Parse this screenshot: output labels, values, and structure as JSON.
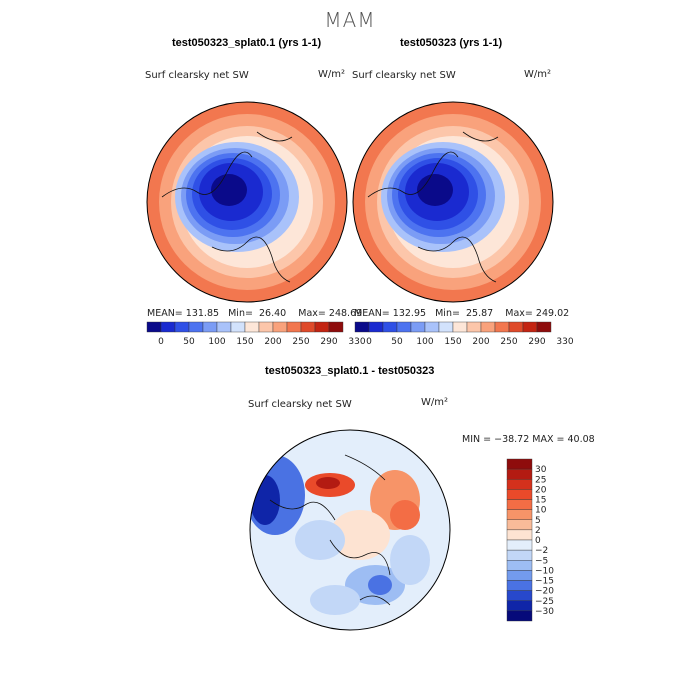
{
  "season": "MAM",
  "panels": [
    {
      "title": "test050323_splat0.1 (yrs 1-1)",
      "variable": "Surf clearsky net SW",
      "units": "W/m²",
      "stats": {
        "mean_label": "MEAN=",
        "mean": "131.85",
        "min_label": "Min=",
        "min": "26.40",
        "max_label": "Max=",
        "max": "248.69"
      }
    },
    {
      "title": "test050323 (yrs 1-1)",
      "variable": "Surf clearsky net SW",
      "units": "W/m²",
      "stats": {
        "mean_label": "MEAN=",
        "mean": "132.95",
        "min_label": "Min=",
        "min": "25.87",
        "max_label": "Max=",
        "max": "249.02"
      }
    }
  ],
  "diff_panel": {
    "title": "test050323_splat0.1 - test050323",
    "variable": "Surf clearsky net SW",
    "units": "W/m²",
    "minmax": "MIN = −38.72 MAX =  40.08"
  },
  "chart_data": [
    {
      "type": "heatmap",
      "projection": "north-polar-stereographic",
      "title": "test050323_splat0.1 (yrs 1-1)",
      "variable": "Surf clearsky net SW",
      "units": "W/m2",
      "mean": 131.85,
      "min": 26.4,
      "max": 248.69,
      "colorbar_ticks": [
        "0",
        "50",
        "100",
        "150",
        "200",
        "250",
        "290",
        "330"
      ],
      "colors": [
        "#0a0a8a",
        "#1a2ad0",
        "#2f50e6",
        "#4d73f0",
        "#7b9cf5",
        "#a9c2fa",
        "#d2e2fc",
        "#fde6d8",
        "#fcc6aa",
        "#f9a27c",
        "#f2774f",
        "#df4a2a",
        "#c32412",
        "#8e0c0c"
      ]
    },
    {
      "type": "heatmap",
      "projection": "north-polar-stereographic",
      "title": "test050323 (yrs 1-1)",
      "variable": "Surf clearsky net SW",
      "units": "W/m2",
      "mean": 132.95,
      "min": 25.87,
      "max": 249.02,
      "colorbar_ticks": [
        "0",
        "50",
        "100",
        "150",
        "200",
        "250",
        "290",
        "330"
      ],
      "colors": [
        "#0a0a8a",
        "#1a2ad0",
        "#2f50e6",
        "#4d73f0",
        "#7b9cf5",
        "#a9c2fa",
        "#d2e2fc",
        "#fde6d8",
        "#fcc6aa",
        "#f9a27c",
        "#f2774f",
        "#df4a2a",
        "#c32412",
        "#8e0c0c"
      ]
    },
    {
      "type": "heatmap",
      "projection": "north-polar-stereographic",
      "title": "test050323_splat0.1 - test050323",
      "variable": "Surf clearsky net SW",
      "units": "W/m2",
      "min": -38.72,
      "max": 40.08,
      "colorbar_ticks": [
        "30",
        "25",
        "20",
        "15",
        "10",
        "5",
        "2",
        "0",
        "−2",
        "−5",
        "−10",
        "−15",
        "−20",
        "−25",
        "−30"
      ],
      "colors": [
        "#8e0c0c",
        "#b31b12",
        "#d4311c",
        "#ea4a2a",
        "#f36d45",
        "#f79468",
        "#f9bb99",
        "#fde3d2",
        "#e3eefb",
        "#c2d7f7",
        "#9dbdf3",
        "#739bed",
        "#4a72e3",
        "#2748cc",
        "#0f25a8",
        "#060a7a"
      ]
    }
  ]
}
